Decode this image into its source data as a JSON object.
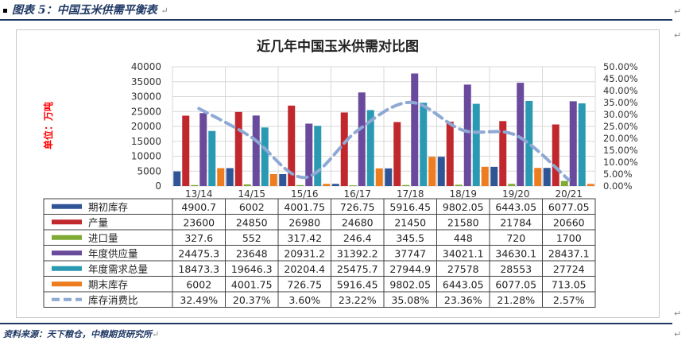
{
  "document": {
    "figure_title": "图表 5：中国玉米供需平衡表",
    "source": "资料来源：天下粮仓，中粮期货研究所"
  },
  "chart_data": {
    "type": "bar",
    "title": "近几年中国玉米供需对比图",
    "ylabel": "单位：万吨",
    "ylim": [
      0,
      40000
    ],
    "y_ticks": [
      0,
      5000,
      10000,
      15000,
      20000,
      25000,
      30000,
      35000,
      40000
    ],
    "y2lim": [
      0,
      0.5
    ],
    "y2_ticks": [
      "0.00%",
      "5.00%",
      "10.00%",
      "15.00%",
      "20.00%",
      "25.00%",
      "30.00%",
      "35.00%",
      "40.00%",
      "45.00%",
      "50.00%"
    ],
    "categories": [
      "13/14",
      "14/15",
      "15/16",
      "16/17",
      "17/18",
      "18/19",
      "19/20",
      "20/21"
    ],
    "series": [
      {
        "name": "期初库存",
        "type": "bar",
        "color": "#2f5597",
        "labels": [
          "4900.7",
          "6002",
          "4001.75",
          "726.75",
          "5916.45",
          "9802.05",
          "6443.05",
          "6077.05"
        ],
        "values": [
          4900.7,
          6002,
          4001.75,
          726.75,
          5916.45,
          9802.05,
          6443.05,
          6077.05
        ]
      },
      {
        "name": "产量",
        "type": "bar",
        "color": "#c0282d",
        "labels": [
          "23600",
          "24850",
          "26980",
          "24680",
          "21450",
          "21580",
          "21784",
          "20660"
        ],
        "values": [
          23600,
          24850,
          26980,
          24680,
          21450,
          21580,
          21784,
          20660
        ]
      },
      {
        "name": "进口量",
        "type": "bar",
        "color": "#7fab34",
        "labels": [
          "327.6",
          "552",
          "317.42",
          "246.4",
          "345.5",
          "448",
          "720",
          "1700"
        ],
        "values": [
          327.6,
          552,
          317.42,
          246.4,
          345.5,
          448,
          720,
          1700
        ]
      },
      {
        "name": "年度供应量",
        "type": "bar",
        "color": "#6a4a9c",
        "labels": [
          "24475.3",
          "23648",
          "20931.2",
          "31392.2",
          "37747",
          "34021.1",
          "34630.1",
          "28437.1"
        ],
        "values": [
          24475.3,
          23648,
          20931.2,
          31392.2,
          37747,
          34021.1,
          34630.1,
          28437.1
        ]
      },
      {
        "name": "年度需求总量",
        "type": "bar",
        "color": "#2a9ab3",
        "labels": [
          "18473.3",
          "19646.3",
          "20204.4",
          "25475.7",
          "27944.9",
          "27578",
          "28553",
          "27724"
        ],
        "values": [
          18473.3,
          19646.3,
          20204.4,
          25475.7,
          27944.9,
          27578,
          28553,
          27724
        ]
      },
      {
        "name": "期末库存",
        "type": "bar",
        "color": "#ed7d1f",
        "labels": [
          "6002",
          "4001.75",
          "726.75",
          "5916.45",
          "9802.05",
          "6443.05",
          "6077.05",
          "713.05"
        ],
        "values": [
          6002,
          4001.75,
          726.75,
          5916.45,
          9802.05,
          6443.05,
          6077.05,
          713.05
        ]
      },
      {
        "name": "库存消费比",
        "type": "line",
        "axis": "right",
        "color": "#8ea9d4",
        "labels": [
          "32.49%",
          "20.37%",
          "3.60%",
          "23.22%",
          "35.08%",
          "23.36%",
          "21.28%",
          "2.57%"
        ],
        "values": [
          0.3249,
          0.2037,
          0.036,
          0.2322,
          0.3508,
          0.2336,
          0.2128,
          0.0257
        ]
      }
    ],
    "grid": true,
    "legend": "data-table"
  }
}
